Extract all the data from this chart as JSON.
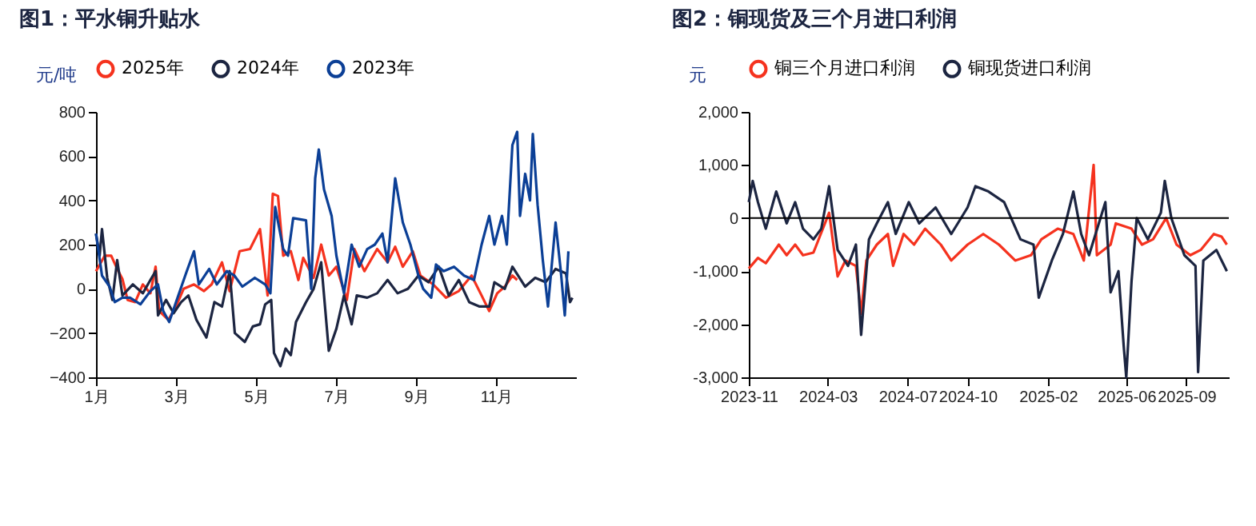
{
  "chart_data": [
    {
      "type": "line",
      "title": "图1：平水铜升贴水",
      "ylabel": "元/吨",
      "legend": "top",
      "xlim": [
        1,
        13
      ],
      "xticks": [
        {
          "value": 1,
          "label": "1月"
        },
        {
          "value": 3,
          "label": "3月"
        },
        {
          "value": 5,
          "label": "5月"
        },
        {
          "value": 7,
          "label": "7月"
        },
        {
          "value": 9,
          "label": "9月"
        },
        {
          "value": 11,
          "label": "11月"
        }
      ],
      "ylim": [
        -400,
        800
      ],
      "yticks": [
        -400,
        -200,
        0,
        200,
        400,
        600,
        800
      ],
      "series": [
        {
          "name": "2025年",
          "color": "#f5321e",
          "x": [
            1.0,
            1.22,
            1.38,
            1.53,
            1.66,
            1.79,
            1.98,
            2.17,
            2.36,
            2.49,
            2.58,
            2.81,
            3.0,
            3.19,
            3.45,
            3.7,
            3.89,
            4.15,
            4.34,
            4.59,
            4.85,
            5.1,
            5.29,
            5.42,
            5.55,
            5.68,
            5.87,
            6.06,
            6.18,
            6.44,
            6.63,
            6.82,
            7.01,
            7.27,
            7.46,
            7.71,
            8.03,
            8.29,
            8.48,
            8.67,
            8.92,
            9.11,
            9.43,
            9.75,
            10.07,
            10.39,
            10.64,
            10.83,
            11.03,
            11.22,
            11.41,
            11.53
          ],
          "values": [
            80,
            150,
            150,
            90,
            45,
            -50,
            -60,
            20,
            -20,
            100,
            -100,
            -140,
            -80,
            0,
            20,
            -10,
            20,
            120,
            -10,
            170,
            180,
            270,
            -30,
            430,
            420,
            150,
            170,
            40,
            140,
            50,
            200,
            60,
            100,
            -50,
            180,
            80,
            180,
            120,
            190,
            100,
            170,
            60,
            20,
            -40,
            -10,
            60,
            -30,
            -100,
            -20,
            10,
            60,
            40
          ]
        },
        {
          "name": "2024年",
          "color": "#1c2541",
          "x": [
            1.0,
            1.09,
            1.15,
            1.28,
            1.41,
            1.53,
            1.66,
            1.92,
            2.17,
            2.36,
            2.49,
            2.55,
            2.75,
            2.94,
            3.13,
            3.31,
            3.51,
            3.76,
            3.96,
            4.15,
            4.34,
            4.47,
            4.72,
            4.92,
            5.1,
            5.23,
            5.38,
            5.45,
            5.61,
            5.74,
            5.87,
            6.0,
            6.25,
            6.44,
            6.63,
            6.82,
            7.01,
            7.2,
            7.39,
            7.52,
            7.78,
            8.03,
            8.29,
            8.54,
            8.8,
            9.06,
            9.31,
            9.57,
            9.82,
            10.07,
            10.33,
            10.59,
            10.83,
            10.96,
            11.22,
            11.41,
            11.73,
            11.98,
            12.24,
            12.49,
            12.75,
            12.85,
            12.91
          ],
          "values": [
            250,
            150,
            270,
            50,
            -50,
            130,
            -30,
            20,
            -20,
            40,
            80,
            -120,
            -50,
            -110,
            -60,
            -30,
            -140,
            -220,
            -60,
            -80,
            80,
            -200,
            -240,
            -170,
            -160,
            -70,
            -50,
            -290,
            -350,
            -270,
            -300,
            -150,
            -60,
            0,
            120,
            -280,
            -180,
            -30,
            -160,
            -30,
            -40,
            -20,
            40,
            -20,
            0,
            60,
            30,
            100,
            -30,
            40,
            -60,
            -80,
            -80,
            30,
            0,
            100,
            10,
            50,
            30,
            90,
            70,
            -60,
            -40
          ]
        },
        {
          "name": "2023年",
          "color": "#0b3f96",
          "x": [
            1.0,
            1.15,
            1.34,
            1.47,
            1.66,
            1.85,
            2.11,
            2.36,
            2.55,
            2.68,
            2.83,
            3.0,
            3.25,
            3.45,
            3.57,
            3.83,
            4.02,
            4.27,
            4.46,
            4.66,
            4.97,
            5.23,
            5.36,
            5.48,
            5.68,
            5.8,
            5.93,
            6.25,
            6.38,
            6.48,
            6.57,
            6.7,
            6.89,
            7.01,
            7.2,
            7.39,
            7.58,
            7.78,
            7.97,
            8.16,
            8.29,
            8.48,
            8.67,
            8.86,
            9.06,
            9.18,
            9.38,
            9.5,
            9.69,
            9.95,
            10.2,
            10.45,
            10.64,
            10.83,
            10.96,
            11.15,
            11.27,
            11.41,
            11.53,
            11.6,
            11.73,
            11.85,
            11.92,
            12.04,
            12.17,
            12.3,
            12.49,
            12.62,
            12.72,
            12.81
          ],
          "values": [
            250,
            60,
            10,
            -60,
            -40,
            -40,
            -70,
            -10,
            20,
            -100,
            -150,
            -60,
            70,
            170,
            20,
            90,
            20,
            80,
            60,
            10,
            50,
            20,
            -20,
            370,
            180,
            150,
            320,
            310,
            0,
            500,
            630,
            450,
            330,
            150,
            -20,
            200,
            100,
            180,
            200,
            250,
            120,
            500,
            300,
            200,
            60,
            0,
            -40,
            110,
            80,
            100,
            60,
            40,
            200,
            330,
            200,
            330,
            200,
            650,
            710,
            330,
            520,
            400,
            700,
            380,
            130,
            -80,
            300,
            80,
            -120,
            170
          ]
        }
      ]
    },
    {
      "type": "line",
      "title": "图2：铜现货及三个月进口利润",
      "ylabel": "元",
      "legend": "top",
      "xlim": [
        "2023-11-01",
        "2025-11-05"
      ],
      "xticks": [
        "2023-11",
        "2024-03",
        "2024-07",
        "2024-10",
        "2025-02",
        "2025-06",
        "2025-09"
      ],
      "ylim": [
        -3000,
        2000
      ],
      "yticks": [
        {
          "value": -3000,
          "label": "-3,000"
        },
        {
          "value": -2000,
          "label": "-2,000"
        },
        {
          "value": -1000,
          "label": "-1,000"
        },
        0,
        {
          "value": 1000,
          "label": "1,000"
        },
        {
          "value": 2000,
          "label": "2,000"
        }
      ],
      "ref_lines": [
        {
          "axis": "y",
          "value": 0,
          "color": "#000000"
        }
      ],
      "series": [
        {
          "name": "铜三个月进口利润",
          "color": "#f5321e",
          "x": [
            "2023-11-01",
            "2023-11-15",
            "2023-11-27",
            "2023-12-17",
            "2023-12-29",
            "2024-01-11",
            "2024-01-23",
            "2024-02-08",
            "2024-03-03",
            "2024-03-16",
            "2024-03-28",
            "2024-04-13",
            "2024-04-21",
            "2024-04-29",
            "2024-05-15",
            "2024-06-01",
            "2024-06-09",
            "2024-06-25",
            "2024-07-11",
            "2024-07-28",
            "2024-08-21",
            "2024-09-06",
            "2024-10-01",
            "2024-10-25",
            "2024-11-18",
            "2024-12-13",
            "2025-01-06",
            "2025-01-22",
            "2025-02-16",
            "2025-03-12",
            "2025-03-28",
            "2025-04-12",
            "2025-04-17",
            "2025-05-08",
            "2025-05-16",
            "2025-06-09",
            "2025-06-25",
            "2025-07-12",
            "2025-08-01",
            "2025-08-17",
            "2025-09-07",
            "2025-09-23",
            "2025-10-13",
            "2025-10-25",
            "2025-11-02"
          ],
          "values": [
            -950,
            -750,
            -850,
            -500,
            -700,
            -500,
            -700,
            -650,
            100,
            -1100,
            -800,
            -900,
            -1800,
            -800,
            -500,
            -300,
            -900,
            -300,
            -500,
            -200,
            -500,
            -800,
            -500,
            -300,
            -500,
            -800,
            -700,
            -400,
            -200,
            -300,
            -800,
            1000,
            -700,
            -500,
            -100,
            -200,
            -500,
            -400,
            0,
            -500,
            -700,
            -600,
            -300,
            -350,
            -500
          ]
        },
        {
          "name": "铜现货进口利润",
          "color": "#1c2541",
          "x": [
            "2023-11-01",
            "2023-11-07",
            "2023-11-15",
            "2023-11-27",
            "2023-12-13",
            "2023-12-29",
            "2024-01-11",
            "2024-01-23",
            "2024-02-08",
            "2024-02-20",
            "2024-03-03",
            "2024-03-16",
            "2024-04-01",
            "2024-04-13",
            "2024-04-21",
            "2024-05-03",
            "2024-05-15",
            "2024-06-01",
            "2024-06-13",
            "2024-07-03",
            "2024-07-19",
            "2024-08-13",
            "2024-09-06",
            "2024-10-01",
            "2024-10-13",
            "2024-11-02",
            "2024-11-26",
            "2024-12-21",
            "2025-01-10",
            "2025-01-18",
            "2025-02-07",
            "2025-02-24",
            "2025-03-12",
            "2025-03-24",
            "2025-04-05",
            "2025-04-30",
            "2025-05-08",
            "2025-05-20",
            "2025-05-28",
            "2025-06-01",
            "2025-06-09",
            "2025-06-17",
            "2025-07-04",
            "2025-07-24",
            "2025-07-30",
            "2025-08-09",
            "2025-08-29",
            "2025-09-15",
            "2025-09-19",
            "2025-09-27",
            "2025-10-17",
            "2025-10-29",
            "2025-11-02"
          ],
          "values": [
            300,
            700,
            300,
            -200,
            500,
            -100,
            300,
            -200,
            -400,
            -200,
            600,
            -600,
            -900,
            -500,
            -2200,
            -400,
            -100,
            300,
            -300,
            300,
            -100,
            200,
            -300,
            200,
            600,
            500,
            300,
            -400,
            -500,
            -1500,
            -800,
            -300,
            500,
            -300,
            -700,
            300,
            -1400,
            -1000,
            -2400,
            -3000,
            -1200,
            0,
            -400,
            100,
            700,
            0,
            -700,
            -900,
            -2900,
            -800,
            -600,
            -900,
            -1000
          ]
        }
      ]
    }
  ]
}
